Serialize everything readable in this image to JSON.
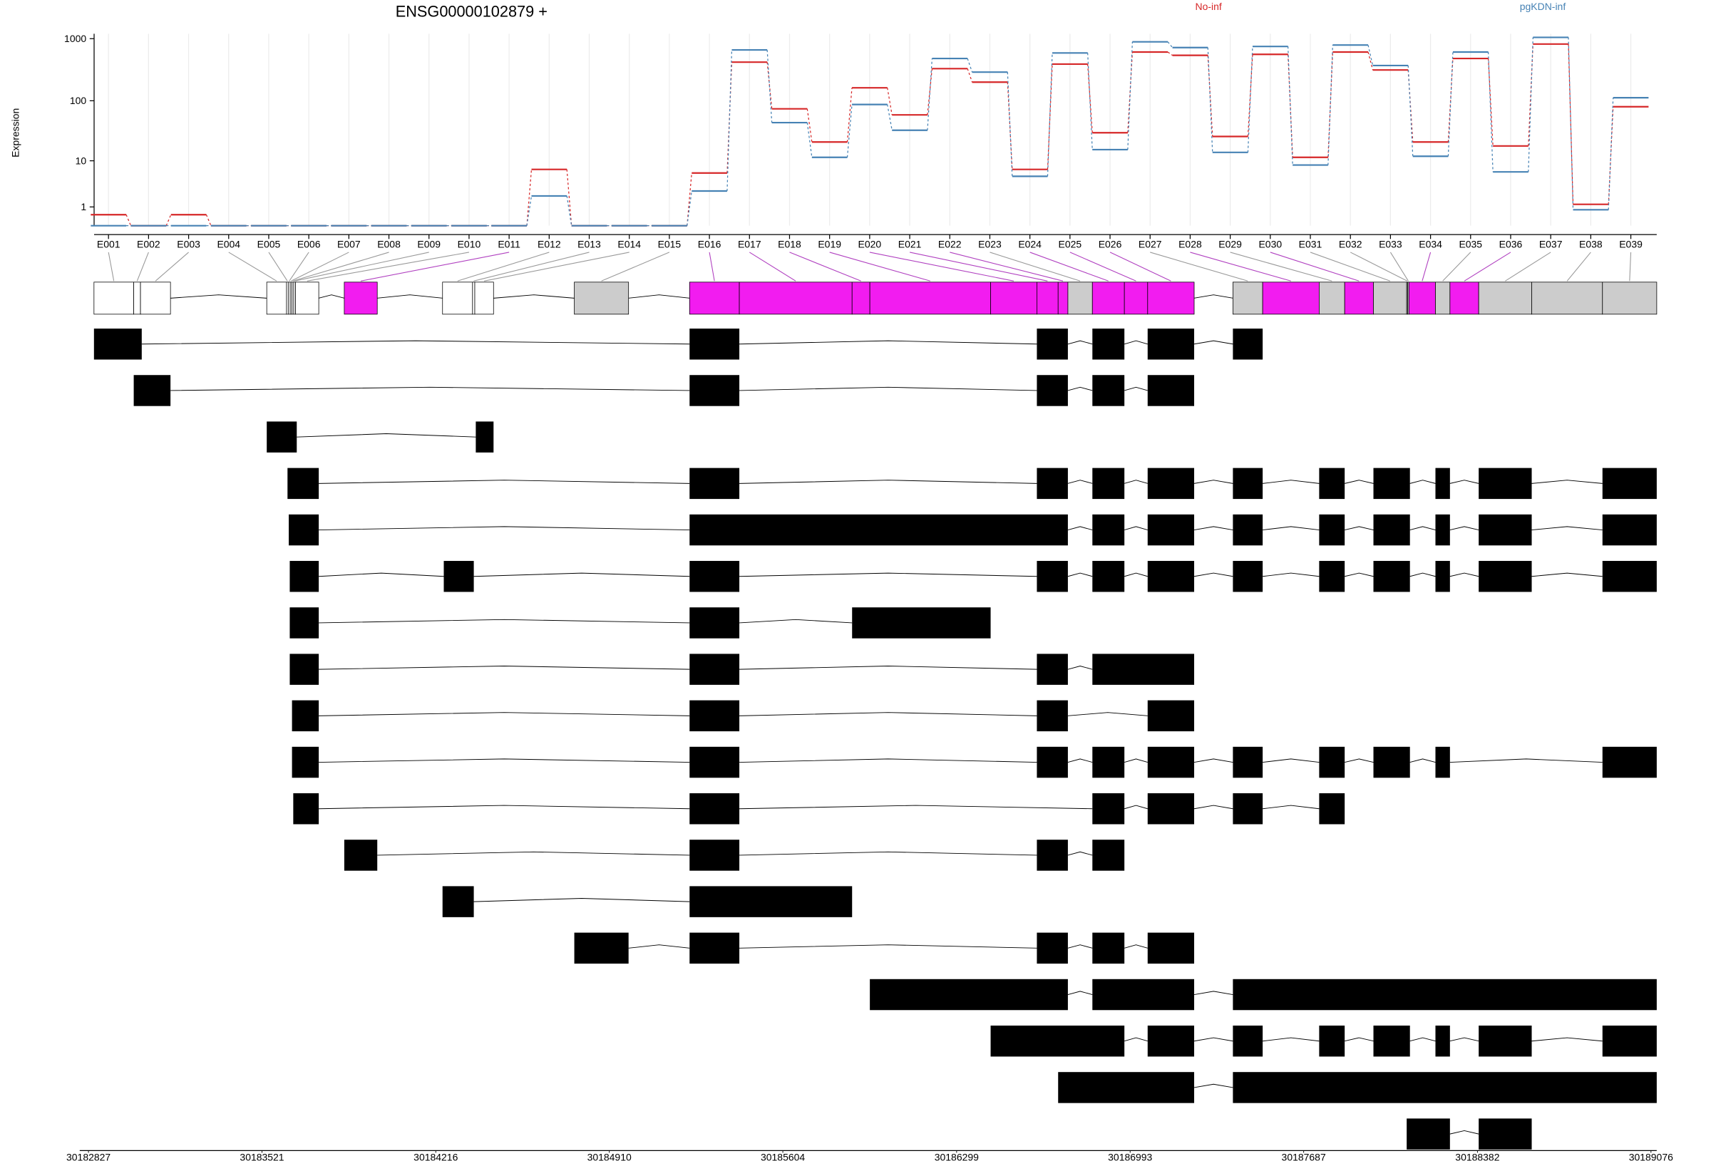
{
  "chart_data": {
    "type": "dexseq",
    "title": "ENSG00000102879 +",
    "ylabel": "Expression",
    "log_scale": true,
    "grid": true,
    "legend": "top",
    "ylim": [
      0,
      1200
    ],
    "yticks": [
      1,
      10,
      100,
      1000
    ],
    "categories": [
      "E001",
      "E002",
      "E003",
      "E004",
      "E005",
      "E006",
      "E007",
      "E008",
      "E009",
      "E010",
      "E011",
      "E012",
      "E013",
      "E014",
      "E015",
      "E016",
      "E017",
      "E018",
      "E019",
      "E020",
      "E021",
      "E022",
      "E023",
      "E024",
      "E025",
      "E026",
      "E027",
      "E028",
      "E029",
      "E030",
      "E031",
      "E032",
      "E033",
      "E034",
      "E035",
      "E036",
      "E037",
      "E038",
      "E039"
    ],
    "series": [
      {
        "name": "No-inf",
        "color": "#d62728",
        "values": [
          0.5,
          0,
          0.5,
          0,
          0,
          0,
          0,
          0,
          0,
          0,
          0,
          7,
          0,
          0,
          0,
          6,
          420,
          74,
          21,
          162,
          59,
          330,
          200,
          7,
          390,
          30,
          610,
          540,
          26,
          560,
          11.5,
          610,
          314,
          21,
          480,
          18,
          820,
          1.2,
          80
        ]
      },
      {
        "name": "pgKDN-inf",
        "color": "#4682b4",
        "values": [
          0,
          0,
          0,
          0,
          0,
          0,
          0,
          0,
          0,
          0,
          0,
          2,
          0,
          0,
          0,
          2.6,
          660,
          44,
          11.5,
          87,
          33,
          480,
          290,
          5.2,
          590,
          15.6,
          890,
          720,
          14,
          750,
          8.4,
          790,
          370,
          12,
          610,
          6.3,
          1050,
          0.8,
          112
        ]
      }
    ],
    "xlim": [
      30182792,
      30189099
    ],
    "xticks": [
      30182827,
      30183521,
      30184216,
      30184910,
      30185604,
      30186299,
      30186993,
      30187687,
      30188382,
      30189076
    ],
    "exon_regions": [
      {
        "start": 30182849,
        "end": 30183008,
        "color": "#ffffff"
      },
      {
        "start": 30183008,
        "end": 30183035,
        "color": "#ffffff"
      },
      {
        "start": 30183035,
        "end": 30183155,
        "color": "#ffffff"
      },
      {
        "start": 30183540,
        "end": 30183619,
        "color": "#ffffff"
      },
      {
        "start": 30183619,
        "end": 30183626,
        "color": "#ffffff"
      },
      {
        "start": 30183626,
        "end": 30183634,
        "color": "#ffffff"
      },
      {
        "start": 30183634,
        "end": 30183641,
        "color": "#ffffff"
      },
      {
        "start": 30183641,
        "end": 30183648,
        "color": "#ffffff"
      },
      {
        "start": 30183648,
        "end": 30183655,
        "color": "#ffffff"
      },
      {
        "start": 30183655,
        "end": 30183748,
        "color": "#ffffff"
      },
      {
        "start": 30183850,
        "end": 30183982,
        "color": "#f21cf0"
      },
      {
        "start": 30184243,
        "end": 30184363,
        "color": "#ffffff"
      },
      {
        "start": 30184363,
        "end": 30184372,
        "color": "#ffffff"
      },
      {
        "start": 30184372,
        "end": 30184447,
        "color": "#ffffff"
      },
      {
        "start": 30184770,
        "end": 30184987,
        "color": "#cccccc"
      },
      {
        "start": 30185231,
        "end": 30185430,
        "color": "#f21cf0"
      },
      {
        "start": 30185430,
        "end": 30185881,
        "color": "#f21cf0"
      },
      {
        "start": 30185881,
        "end": 30185952,
        "color": "#f21cf0"
      },
      {
        "start": 30185952,
        "end": 30186435,
        "color": "#f21cf0"
      },
      {
        "start": 30186435,
        "end": 30186620,
        "color": "#f21cf0"
      },
      {
        "start": 30186620,
        "end": 30186705,
        "color": "#f21cf0"
      },
      {
        "start": 30186705,
        "end": 30186744,
        "color": "#f21cf0"
      },
      {
        "start": 30186744,
        "end": 30186842,
        "color": "#cccccc"
      },
      {
        "start": 30186842,
        "end": 30186970,
        "color": "#f21cf0"
      },
      {
        "start": 30186970,
        "end": 30187063,
        "color": "#f21cf0"
      },
      {
        "start": 30187063,
        "end": 30187249,
        "color": "#f21cf0"
      },
      {
        "start": 30187404,
        "end": 30187523,
        "color": "#cccccc"
      },
      {
        "start": 30187523,
        "end": 30187749,
        "color": "#f21cf0"
      },
      {
        "start": 30187749,
        "end": 30187851,
        "color": "#cccccc"
      },
      {
        "start": 30187851,
        "end": 30187966,
        "color": "#f21cf0"
      },
      {
        "start": 30187966,
        "end": 30188099,
        "color": "#cccccc"
      },
      {
        "start": 30188099,
        "end": 30188103,
        "color": "#cccccc"
      },
      {
        "start": 30188103,
        "end": 30188108,
        "color": "#cccccc"
      },
      {
        "start": 30188108,
        "end": 30188214,
        "color": "#f21cf0"
      },
      {
        "start": 30188214,
        "end": 30188272,
        "color": "#cccccc"
      },
      {
        "start": 30188272,
        "end": 30188387,
        "color": "#f21cf0"
      },
      {
        "start": 30188387,
        "end": 30188599,
        "color": "#cccccc"
      },
      {
        "start": 30188599,
        "end": 30188882,
        "color": "#cccccc"
      },
      {
        "start": 30188882,
        "end": 30189099,
        "color": "#cccccc"
      }
    ],
    "transcripts": [
      [
        [
          30182849,
          30183040
        ],
        [
          30185231,
          30185430
        ],
        [
          30186620,
          30186744
        ],
        [
          30186842,
          30186970
        ],
        [
          30187063,
          30187249
        ],
        [
          30187404,
          30187523
        ]
      ],
      [
        [
          30183008,
          30183155
        ],
        [
          30185231,
          30185430
        ],
        [
          30186620,
          30186744
        ],
        [
          30186842,
          30186970
        ],
        [
          30187063,
          30187249
        ]
      ],
      [
        [
          30183540,
          30183660
        ],
        [
          30184376,
          30184447
        ]
      ],
      [
        [
          30183623,
          30183748
        ],
        [
          30185231,
          30185430
        ],
        [
          30186620,
          30186744
        ],
        [
          30186842,
          30186970
        ],
        [
          30187063,
          30187249
        ],
        [
          30187404,
          30187523
        ],
        [
          30187749,
          30187851
        ],
        [
          30187966,
          30188112
        ],
        [
          30188214,
          30188272
        ],
        [
          30188387,
          30188599
        ],
        [
          30188882,
          30189099
        ]
      ],
      [
        [
          30183628,
          30183748
        ],
        [
          30185231,
          30186744
        ],
        [
          30186842,
          30186970
        ],
        [
          30187063,
          30187249
        ],
        [
          30187404,
          30187523
        ],
        [
          30187749,
          30187851
        ],
        [
          30187966,
          30188112
        ],
        [
          30188214,
          30188272
        ],
        [
          30188387,
          30188599
        ],
        [
          30188882,
          30189099
        ]
      ],
      [
        [
          30183632,
          30183748
        ],
        [
          30184248,
          30184368
        ],
        [
          30185231,
          30185430
        ],
        [
          30186620,
          30186744
        ],
        [
          30186842,
          30186970
        ],
        [
          30187063,
          30187249
        ],
        [
          30187404,
          30187523
        ],
        [
          30187749,
          30187851
        ],
        [
          30187966,
          30188112
        ],
        [
          30188214,
          30188272
        ],
        [
          30188387,
          30188599
        ],
        [
          30188882,
          30189099
        ]
      ],
      [
        [
          30183632,
          30183748
        ],
        [
          30185231,
          30185430
        ],
        [
          30185881,
          30186435
        ]
      ],
      [
        [
          30183632,
          30183748
        ],
        [
          30185231,
          30185430
        ],
        [
          30186620,
          30186744
        ],
        [
          30186842,
          30187249
        ]
      ],
      [
        [
          30183641,
          30183748
        ],
        [
          30185231,
          30185430
        ],
        [
          30186620,
          30186744
        ],
        [
          30187063,
          30187249
        ]
      ],
      [
        [
          30183641,
          30183748
        ],
        [
          30185231,
          30185430
        ],
        [
          30186620,
          30186744
        ],
        [
          30186842,
          30186970
        ],
        [
          30187063,
          30187249
        ],
        [
          30187404,
          30187523
        ],
        [
          30187749,
          30187851
        ],
        [
          30187966,
          30188112
        ],
        [
          30188214,
          30188272
        ],
        [
          30188882,
          30189099
        ]
      ],
      [
        [
          30183646,
          30183748
        ],
        [
          30185231,
          30185430
        ],
        [
          30186842,
          30186970
        ],
        [
          30187063,
          30187249
        ],
        [
          30187404,
          30187523
        ],
        [
          30187749,
          30187851
        ]
      ],
      [
        [
          30183850,
          30183982
        ],
        [
          30185231,
          30185430
        ],
        [
          30186620,
          30186744
        ],
        [
          30186842,
          30186970
        ]
      ],
      [
        [
          30184243,
          30184368
        ],
        [
          30185231,
          30185881
        ]
      ],
      [
        [
          30184770,
          30184987
        ],
        [
          30185231,
          30185430
        ],
        [
          30186620,
          30186744
        ],
        [
          30186842,
          30186970
        ],
        [
          30187063,
          30187249
        ]
      ],
      [
        [
          30185952,
          30186744
        ],
        [
          30186842,
          30187249
        ],
        [
          30187404,
          30189099
        ]
      ],
      [
        [
          30186435,
          30186970
        ],
        [
          30187063,
          30187249
        ],
        [
          30187404,
          30187523
        ],
        [
          30187749,
          30187851
        ],
        [
          30187966,
          30188112
        ],
        [
          30188214,
          30188272
        ],
        [
          30188387,
          30188599
        ],
        [
          30188882,
          30189099
        ]
      ],
      [
        [
          30186705,
          30187249
        ],
        [
          30187404,
          30189099
        ]
      ],
      [
        [
          30188099,
          30188272
        ],
        [
          30188387,
          30188599
        ]
      ]
    ]
  }
}
